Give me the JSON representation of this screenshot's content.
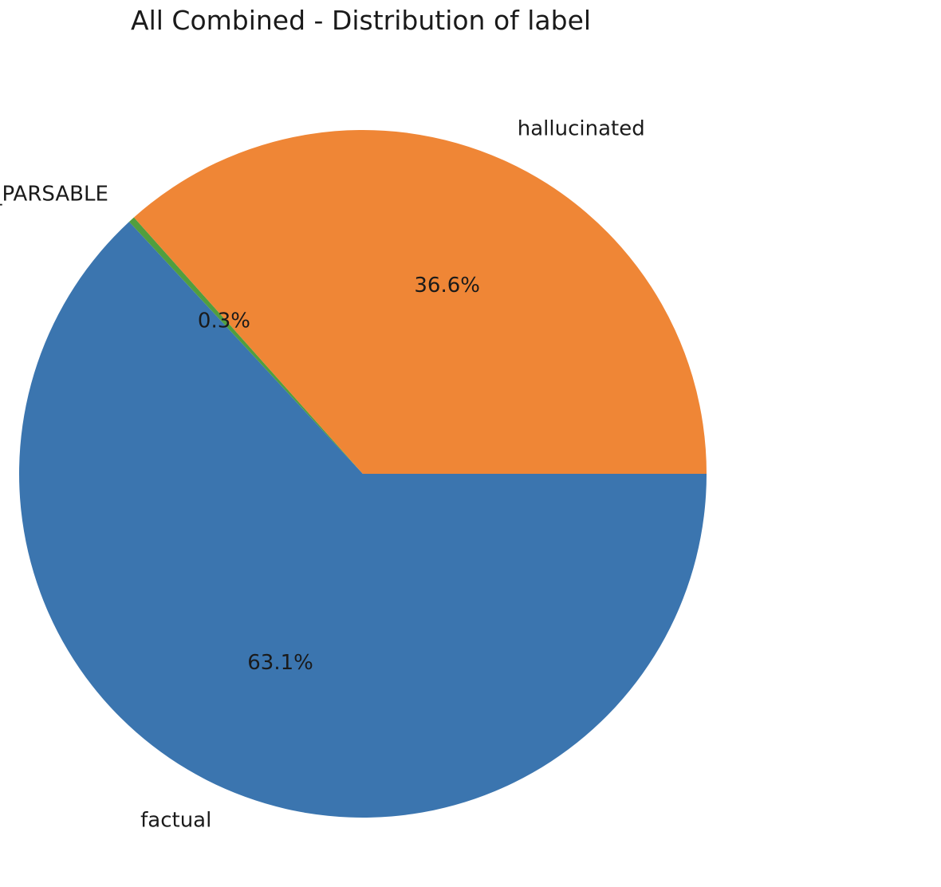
{
  "chart_data": {
    "type": "pie",
    "title": "All Combined - Distribution of label",
    "start_angle_deg": 0,
    "direction": "clockwise",
    "slices": [
      {
        "label": "factual",
        "value": 63.1,
        "pct_label": "63.1%",
        "color": "#3b75af"
      },
      {
        "label": "NOT_PARSABLE",
        "value": 0.3,
        "pct_label": "0.3%",
        "color": "#519e3e"
      },
      {
        "label": "hallucinated",
        "value": 36.6,
        "pct_label": "36.6%",
        "color": "#ef8636"
      }
    ]
  }
}
